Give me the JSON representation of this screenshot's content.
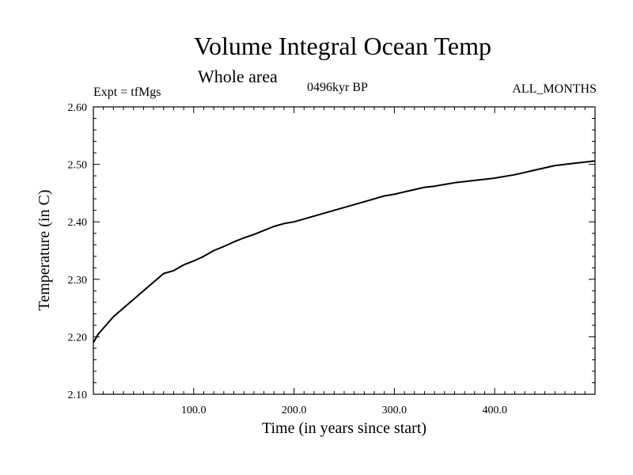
{
  "chart_data": {
    "type": "line",
    "title": "Volume Integral Ocean Temp",
    "subtitle": "Whole area",
    "experiment": "Expt = tfMgs",
    "period": "0496kyr BP",
    "months": "ALL_MONTHS",
    "xlabel": "Time (in years since start)",
    "ylabel": "Temperature (in C)",
    "xlim": [
      0,
      500
    ],
    "ylim": [
      2.1,
      2.6
    ],
    "xticks": [
      100,
      200,
      300,
      400
    ],
    "xtick_labels": [
      "100.0",
      "200.0",
      "300.0",
      "400.0"
    ],
    "yticks": [
      2.1,
      2.2,
      2.3,
      2.4,
      2.5,
      2.6
    ],
    "ytick_labels": [
      "2.10",
      "2.20",
      "2.30",
      "2.40",
      "2.50",
      "2.60"
    ],
    "grid": false,
    "series": [
      {
        "color": "#000000",
        "x": [
          0,
          5,
          10,
          20,
          30,
          40,
          50,
          60,
          70,
          80,
          90,
          100,
          110,
          120,
          130,
          140,
          150,
          160,
          170,
          180,
          190,
          200,
          210,
          220,
          230,
          240,
          250,
          260,
          270,
          280,
          290,
          300,
          310,
          320,
          330,
          340,
          350,
          360,
          370,
          380,
          390,
          400,
          410,
          420,
          430,
          440,
          450,
          460,
          470,
          480,
          490,
          500
        ],
        "y": [
          2.19,
          2.205,
          2.215,
          2.235,
          2.25,
          2.265,
          2.28,
          2.295,
          2.31,
          2.315,
          2.325,
          2.332,
          2.34,
          2.35,
          2.357,
          2.365,
          2.372,
          2.378,
          2.385,
          2.392,
          2.397,
          2.4,
          2.405,
          2.41,
          2.415,
          2.42,
          2.425,
          2.43,
          2.435,
          2.44,
          2.445,
          2.448,
          2.452,
          2.456,
          2.46,
          2.462,
          2.465,
          2.468,
          2.47,
          2.472,
          2.474,
          2.476,
          2.479,
          2.482,
          2.486,
          2.49,
          2.494,
          2.498,
          2.5,
          2.502,
          2.504,
          2.506
        ]
      }
    ]
  }
}
